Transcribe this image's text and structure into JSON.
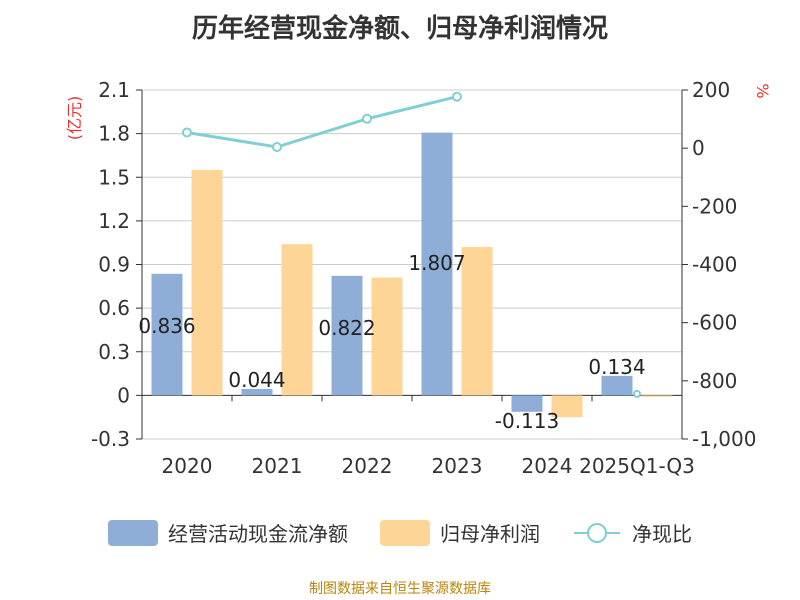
{
  "title": "历年经营现金净额、归母净利润情况",
  "source": "制图数据来自恒生聚源数据库",
  "colors": {
    "cash": "#8eaed8",
    "profit": "#fdd697",
    "ratio": "#7fcfd3",
    "unit": "#e8302e"
  },
  "chart_data": {
    "type": "bar",
    "categories": [
      "2020",
      "2021",
      "2022",
      "2023",
      "2024",
      "2025Q1-Q3"
    ],
    "series": [
      {
        "name": "经营活动现金流净额",
        "type": "bar",
        "axis": "left",
        "values": [
          0.836,
          0.044,
          0.822,
          1.807,
          -0.113,
          0.134
        ],
        "labels": [
          "0.836",
          "0.044",
          "0.822",
          "1.807",
          "-0.113",
          "0.134"
        ]
      },
      {
        "name": "归母净利润",
        "type": "bar",
        "axis": "left",
        "values": [
          1.55,
          1.04,
          0.81,
          1.02,
          -0.15,
          -0.01
        ]
      },
      {
        "name": "净现比",
        "type": "line",
        "axis": "right",
        "values": [
          54,
          4,
          101,
          177,
          null,
          null
        ]
      }
    ],
    "ylabel": "(亿元)",
    "y2label": "%",
    "ylim": [
      -0.3,
      2.1
    ],
    "yticks": [
      -0.3,
      0,
      0.3,
      0.6,
      0.9,
      1.2,
      1.5,
      1.8,
      2.1
    ],
    "ytick_labels": [
      "-0.3",
      "0",
      "0.3",
      "0.6",
      "0.9",
      "1.2",
      "1.5",
      "1.8",
      "2.1"
    ],
    "y2lim": [
      -1000,
      200
    ],
    "y2ticks": [
      -1000,
      -800,
      -600,
      -400,
      -200,
      0,
      200
    ],
    "y2tick_labels": [
      "-1,000",
      "-800",
      "-600",
      "-400",
      "-200",
      "0",
      "200"
    ],
    "grid": true,
    "legend": "bottom"
  }
}
